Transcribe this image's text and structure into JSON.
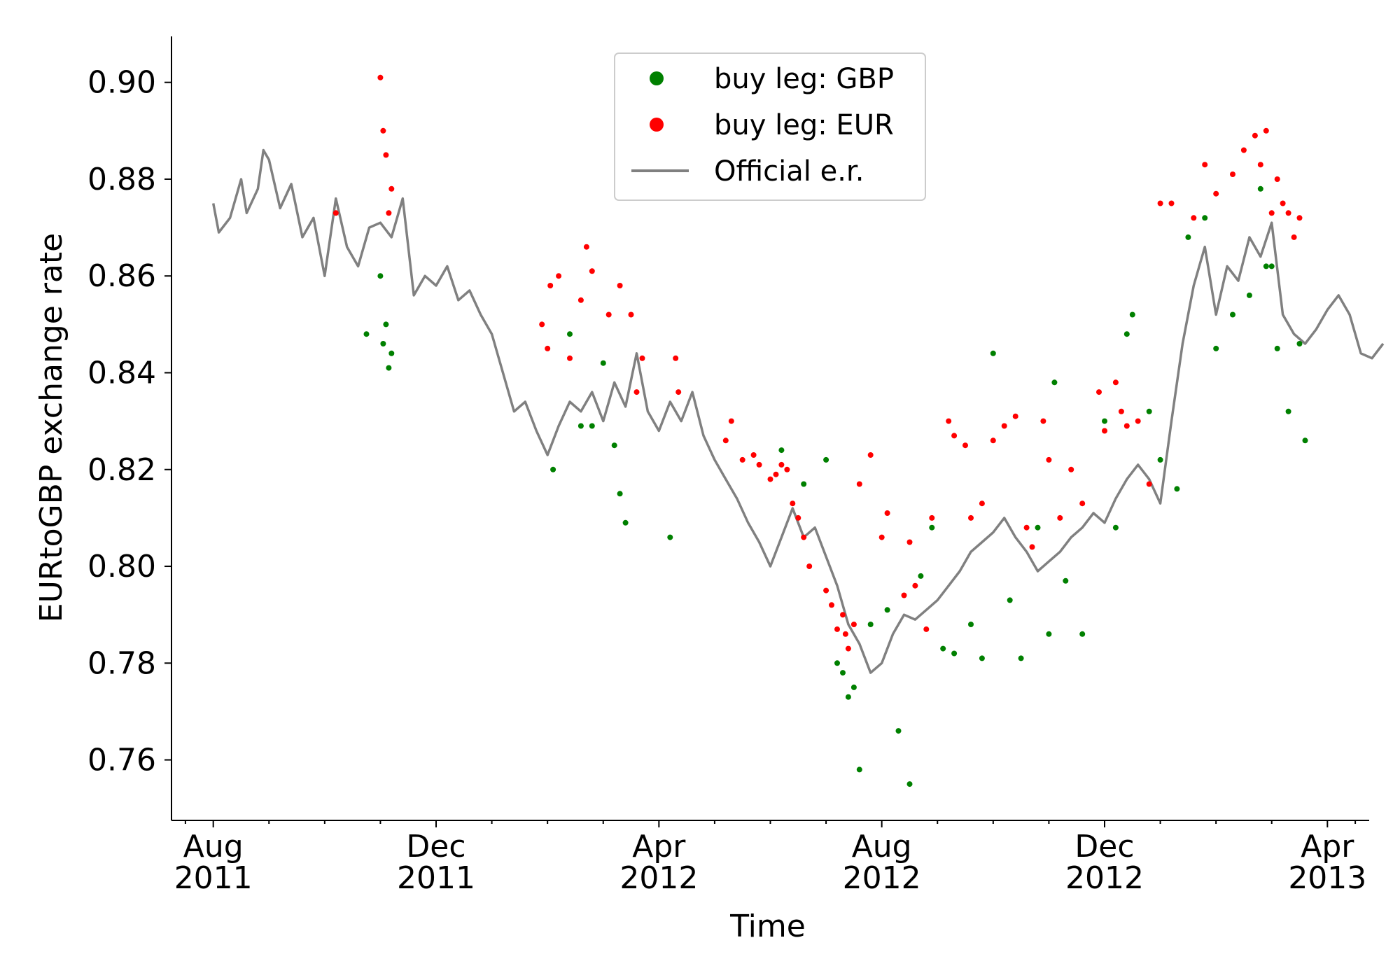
{
  "chart_data": {
    "type": "scatter+line",
    "title": "",
    "xlabel": "Time",
    "ylabel": "EURtoGBP exchange rate",
    "ylim": [
      0.7475,
      0.9095
    ],
    "xlim_month_index": [
      -0.75,
      20.75
    ],
    "y_ticks": [
      "0.76",
      "0.78",
      "0.80",
      "0.82",
      "0.84",
      "0.86",
      "0.88",
      "0.90"
    ],
    "x_ticks": [
      {
        "month_index": 0,
        "line1": "Aug",
        "line2": "2011"
      },
      {
        "month_index": 4,
        "line1": "Dec",
        "line2": "2011"
      },
      {
        "month_index": 8,
        "line1": "Apr",
        "line2": "2012"
      },
      {
        "month_index": 12,
        "line1": "Aug",
        "line2": "2012"
      },
      {
        "month_index": 16,
        "line1": "Dec",
        "line2": "2012"
      },
      {
        "month_index": 20,
        "line1": "Apr",
        "line2": "2013"
      }
    ],
    "legend_position": "top-center",
    "series": [
      {
        "name": "Official e.r.",
        "kind": "line",
        "color": "#808080",
        "x": [
          0.0,
          0.1,
          0.3,
          0.5,
          0.6,
          0.8,
          0.9,
          1.0,
          1.2,
          1.4,
          1.6,
          1.8,
          2.0,
          2.2,
          2.4,
          2.6,
          2.8,
          3.0,
          3.2,
          3.4,
          3.6,
          3.8,
          4.0,
          4.2,
          4.4,
          4.6,
          4.8,
          5.0,
          5.2,
          5.4,
          5.6,
          5.8,
          6.0,
          6.2,
          6.4,
          6.6,
          6.8,
          7.0,
          7.2,
          7.4,
          7.6,
          7.8,
          8.0,
          8.2,
          8.4,
          8.6,
          8.8,
          9.0,
          9.2,
          9.4,
          9.6,
          9.8,
          10.0,
          10.2,
          10.4,
          10.6,
          10.8,
          11.0,
          11.2,
          11.4,
          11.6,
          11.8,
          12.0,
          12.2,
          12.4,
          12.6,
          12.8,
          13.0,
          13.2,
          13.4,
          13.6,
          13.8,
          14.0,
          14.2,
          14.4,
          14.6,
          14.8,
          15.0,
          15.2,
          15.4,
          15.6,
          15.8,
          16.0,
          16.2,
          16.4,
          16.6,
          16.8,
          17.0,
          17.2,
          17.4,
          17.6,
          17.8,
          18.0,
          18.2,
          18.4,
          18.6,
          18.8,
          19.0,
          19.2,
          19.4,
          19.6,
          19.8,
          20.0,
          20.2,
          20.4,
          20.6,
          20.8,
          21.0
        ],
        "y": [
          0.875,
          0.869,
          0.872,
          0.88,
          0.873,
          0.878,
          0.886,
          0.884,
          0.874,
          0.879,
          0.868,
          0.872,
          0.86,
          0.876,
          0.866,
          0.862,
          0.87,
          0.871,
          0.868,
          0.876,
          0.856,
          0.86,
          0.858,
          0.862,
          0.855,
          0.857,
          0.852,
          0.848,
          0.84,
          0.832,
          0.834,
          0.828,
          0.823,
          0.829,
          0.834,
          0.832,
          0.836,
          0.83,
          0.838,
          0.833,
          0.844,
          0.832,
          0.828,
          0.834,
          0.83,
          0.836,
          0.827,
          0.822,
          0.818,
          0.814,
          0.809,
          0.805,
          0.8,
          0.806,
          0.812,
          0.806,
          0.808,
          0.802,
          0.796,
          0.788,
          0.784,
          0.778,
          0.78,
          0.786,
          0.79,
          0.789,
          0.791,
          0.793,
          0.796,
          0.799,
          0.803,
          0.805,
          0.807,
          0.81,
          0.806,
          0.803,
          0.799,
          0.801,
          0.803,
          0.806,
          0.808,
          0.811,
          0.809,
          0.814,
          0.818,
          0.821,
          0.818,
          0.813,
          0.83,
          0.846,
          0.858,
          0.866,
          0.852,
          0.862,
          0.859,
          0.868,
          0.864,
          0.871,
          0.852,
          0.848,
          0.846,
          0.849,
          0.853,
          0.856,
          0.852,
          0.844,
          0.843,
          0.846
        ]
      },
      {
        "name": "buy leg: GBP",
        "kind": "scatter",
        "color": "#008000",
        "x": [
          2.75,
          3.0,
          3.05,
          3.1,
          3.15,
          3.2,
          6.1,
          6.4,
          6.6,
          6.8,
          7.0,
          7.2,
          7.3,
          7.4,
          8.2,
          10.2,
          10.6,
          11.0,
          11.2,
          11.3,
          11.4,
          11.5,
          11.6,
          11.8,
          12.1,
          12.3,
          12.5,
          12.7,
          12.9,
          13.1,
          13.3,
          13.6,
          13.8,
          14.0,
          14.3,
          14.5,
          14.8,
          15.0,
          15.1,
          15.3,
          15.6,
          16.0,
          16.2,
          16.4,
          16.5,
          16.8,
          17.0,
          17.3,
          17.5,
          17.8,
          18.0,
          18.3,
          18.6,
          18.8,
          18.9,
          19.0,
          19.1,
          19.3,
          19.5,
          19.6
        ],
        "y": [
          0.848,
          0.86,
          0.846,
          0.85,
          0.841,
          0.844,
          0.82,
          0.848,
          0.829,
          0.829,
          0.842,
          0.825,
          0.815,
          0.809,
          0.806,
          0.824,
          0.817,
          0.822,
          0.78,
          0.778,
          0.773,
          0.775,
          0.758,
          0.788,
          0.791,
          0.766,
          0.755,
          0.798,
          0.808,
          0.783,
          0.782,
          0.788,
          0.781,
          0.844,
          0.793,
          0.781,
          0.808,
          0.786,
          0.838,
          0.797,
          0.786,
          0.83,
          0.808,
          0.848,
          0.852,
          0.832,
          0.822,
          0.816,
          0.868,
          0.872,
          0.845,
          0.852,
          0.856,
          0.878,
          0.862,
          0.862,
          0.845,
          0.832,
          0.846,
          0.826
        ]
      },
      {
        "name": "buy leg: EUR",
        "kind": "scatter",
        "color": "#ff0000",
        "x": [
          2.2,
          3.0,
          3.05,
          3.1,
          3.15,
          3.2,
          5.9,
          6.0,
          6.05,
          6.2,
          6.4,
          6.6,
          6.7,
          6.8,
          7.1,
          7.3,
          7.5,
          7.6,
          7.7,
          8.3,
          8.35,
          9.2,
          9.3,
          9.5,
          9.7,
          9.8,
          10.0,
          10.1,
          10.2,
          10.3,
          10.4,
          10.5,
          10.6,
          10.7,
          11.0,
          11.1,
          11.2,
          11.3,
          11.35,
          11.4,
          11.5,
          11.6,
          11.8,
          12.0,
          12.1,
          12.4,
          12.5,
          12.6,
          12.8,
          12.9,
          13.2,
          13.3,
          13.5,
          13.6,
          13.8,
          14.0,
          14.2,
          14.4,
          14.6,
          14.7,
          14.9,
          15.0,
          15.2,
          15.4,
          15.6,
          15.9,
          16.0,
          16.2,
          16.3,
          16.4,
          16.6,
          16.8,
          17.0,
          17.2,
          17.6,
          17.8,
          18.0,
          18.3,
          18.5,
          18.7,
          18.8,
          18.9,
          19.0,
          19.1,
          19.2,
          19.3,
          19.4,
          19.5
        ],
        "y": [
          0.873,
          0.901,
          0.89,
          0.885,
          0.873,
          0.878,
          0.85,
          0.845,
          0.858,
          0.86,
          0.843,
          0.855,
          0.866,
          0.861,
          0.852,
          0.858,
          0.852,
          0.836,
          0.843,
          0.843,
          0.836,
          0.826,
          0.83,
          0.822,
          0.823,
          0.821,
          0.818,
          0.819,
          0.821,
          0.82,
          0.813,
          0.81,
          0.806,
          0.8,
          0.795,
          0.792,
          0.787,
          0.79,
          0.786,
          0.783,
          0.788,
          0.817,
          0.823,
          0.806,
          0.811,
          0.794,
          0.805,
          0.796,
          0.787,
          0.81,
          0.83,
          0.827,
          0.825,
          0.81,
          0.813,
          0.826,
          0.829,
          0.831,
          0.808,
          0.804,
          0.83,
          0.822,
          0.81,
          0.82,
          0.813,
          0.836,
          0.828,
          0.838,
          0.832,
          0.829,
          0.83,
          0.817,
          0.875,
          0.875,
          0.872,
          0.883,
          0.877,
          0.881,
          0.886,
          0.889,
          0.883,
          0.89,
          0.873,
          0.88,
          0.875,
          0.873,
          0.868,
          0.872
        ]
      }
    ]
  }
}
